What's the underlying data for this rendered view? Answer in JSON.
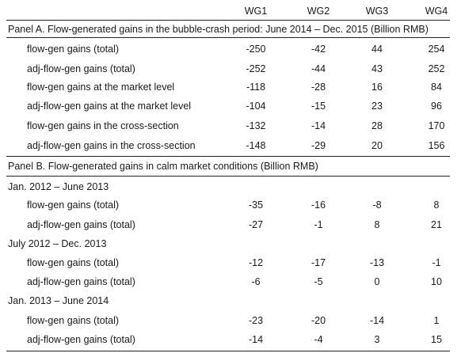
{
  "columns": [
    "WG1",
    "WG2",
    "WG3",
    "WG4"
  ],
  "panel_a": {
    "title": "Panel A. Flow-generated gains in the bubble-crash period: June 2014 – Dec. 2015 (Billion RMB)",
    "rows": [
      {
        "label": "flow-gen gains (total)",
        "values": [
          "-250",
          "-42",
          "44",
          "254"
        ]
      },
      {
        "label": "adj-flow-gen gains (total)",
        "values": [
          "-252",
          "-44",
          "43",
          "252"
        ]
      },
      {
        "label": "flow-gen gains at the market level",
        "values": [
          "-118",
          "-28",
          "16",
          "84"
        ]
      },
      {
        "label": "adj-flow-gen gains at the market level",
        "values": [
          "-104",
          "-15",
          "23",
          "96"
        ]
      },
      {
        "label": "flow-gen gains in the cross-section",
        "values": [
          "-132",
          "-14",
          "28",
          "170"
        ]
      },
      {
        "label": "adj-flow-gen gains in the cross-section",
        "values": [
          "-148",
          "-29",
          "20",
          "156"
        ]
      }
    ]
  },
  "panel_b": {
    "title": "Panel B. Flow-generated gains in calm market conditions (Billion RMB)",
    "periods": [
      {
        "label": "Jan. 2012 – June 2013",
        "rows": [
          {
            "label": "flow-gen gains (total)",
            "values": [
              "-35",
              "-16",
              "-8",
              "8"
            ]
          },
          {
            "label": "adj-flow-gen gains (total)",
            "values": [
              "-27",
              "-1",
              "8",
              "21"
            ]
          }
        ]
      },
      {
        "label": "July 2012 – Dec. 2013",
        "rows": [
          {
            "label": "flow-gen gains (total)",
            "values": [
              "-12",
              "-17",
              "-13",
              "-1"
            ]
          },
          {
            "label": "adj-flow-gen gains (total)",
            "values": [
              "-6",
              "-5",
              "0",
              "10"
            ]
          }
        ]
      },
      {
        "label": "Jan. 2013 – June 2014",
        "rows": [
          {
            "label": "flow-gen gains (total)",
            "values": [
              "-23",
              "-20",
              "-14",
              "1"
            ]
          },
          {
            "label": "adj-flow-gen gains (total)",
            "values": [
              "-14",
              "-4",
              "3",
              "15"
            ]
          }
        ]
      }
    ]
  }
}
